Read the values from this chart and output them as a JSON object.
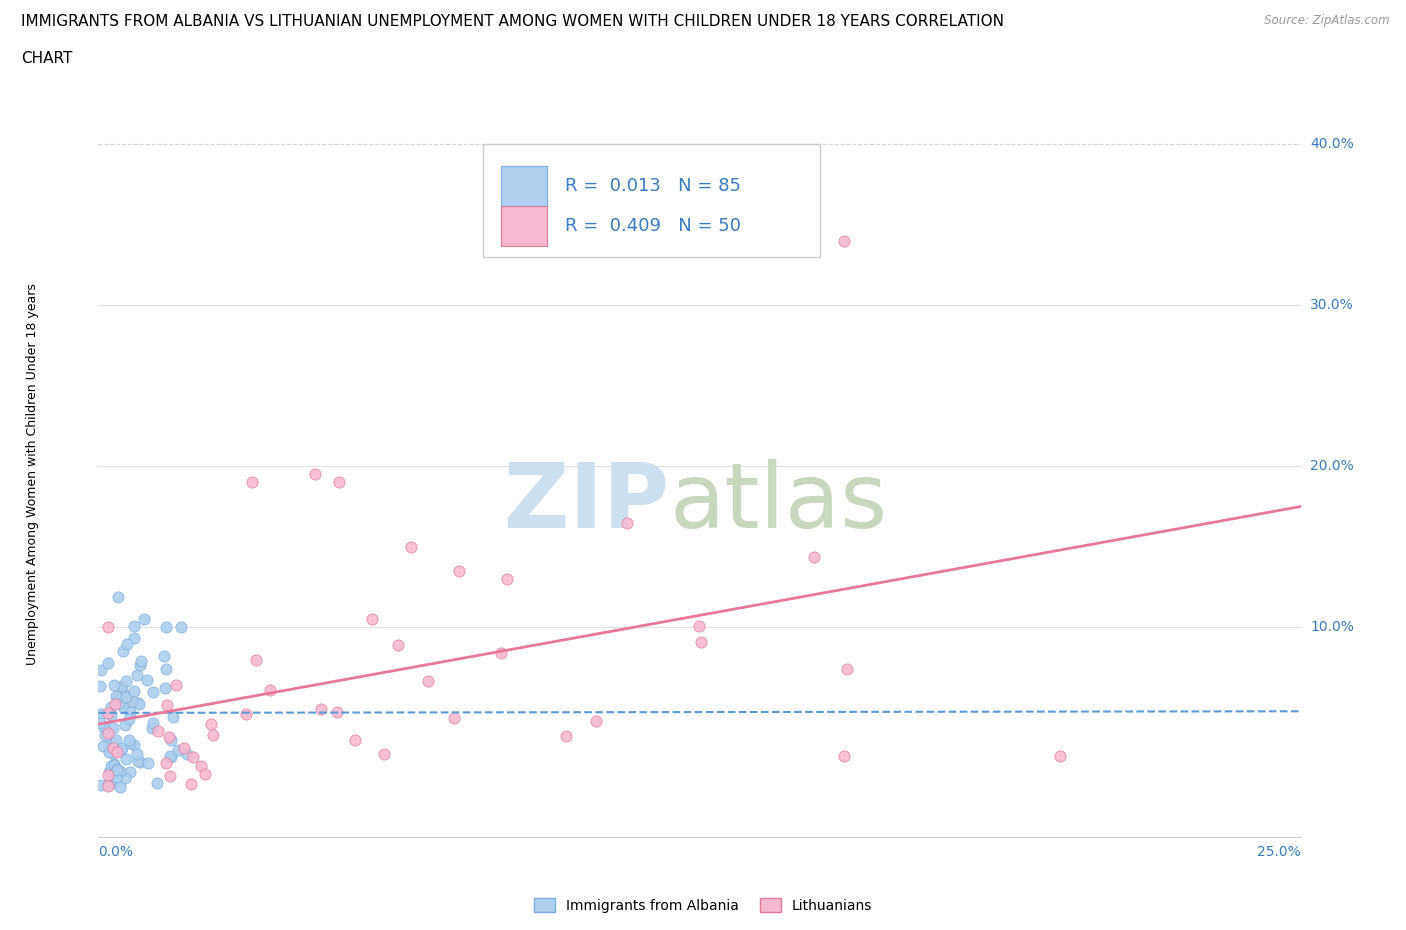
{
  "title_line1": "IMMIGRANTS FROM ALBANIA VS LITHUANIAN UNEMPLOYMENT AMONG WOMEN WITH CHILDREN UNDER 18 YEARS CORRELATION",
  "title_line2": "CHART",
  "source": "Source: ZipAtlas.com",
  "ylabel": "Unemployment Among Women with Children Under 18 years",
  "legend_label1": "Immigrants from Albania",
  "legend_label2": "Lithuanians",
  "xlim": [
    0.0,
    0.25
  ],
  "ylim": [
    -0.03,
    0.42
  ],
  "ytick_vals": [
    0.0,
    0.1,
    0.2,
    0.3,
    0.4
  ],
  "ytick_labels": [
    "",
    "10.0%",
    "20.0%",
    "30.0%",
    "40.0%"
  ],
  "xtick_left_label": "0.0%",
  "xtick_right_label": "25.0%",
  "albania_scatter_color": "#aecfed",
  "albania_edge_color": "#7aaddb",
  "albania_line_color": "#5b9bd5",
  "lithuanian_scatter_color": "#f5b8d0",
  "lithuanian_edge_color": "#e07898",
  "lithuanian_line_color": "#e8789a",
  "albania_R": 0.013,
  "albania_N": 85,
  "lithuanian_R": 0.409,
  "lithuanian_N": 50,
  "stat_color": "#3a7cbf",
  "tick_color": "#3a7cbf",
  "grid_color_solid": "#e0e0e0",
  "grid_color_dashed": "#d8d8d8",
  "background_color": "#ffffff",
  "title_fontsize": 11,
  "watermark_zip_color": "#cde0f0",
  "watermark_atlas_color": "#c8d8be"
}
